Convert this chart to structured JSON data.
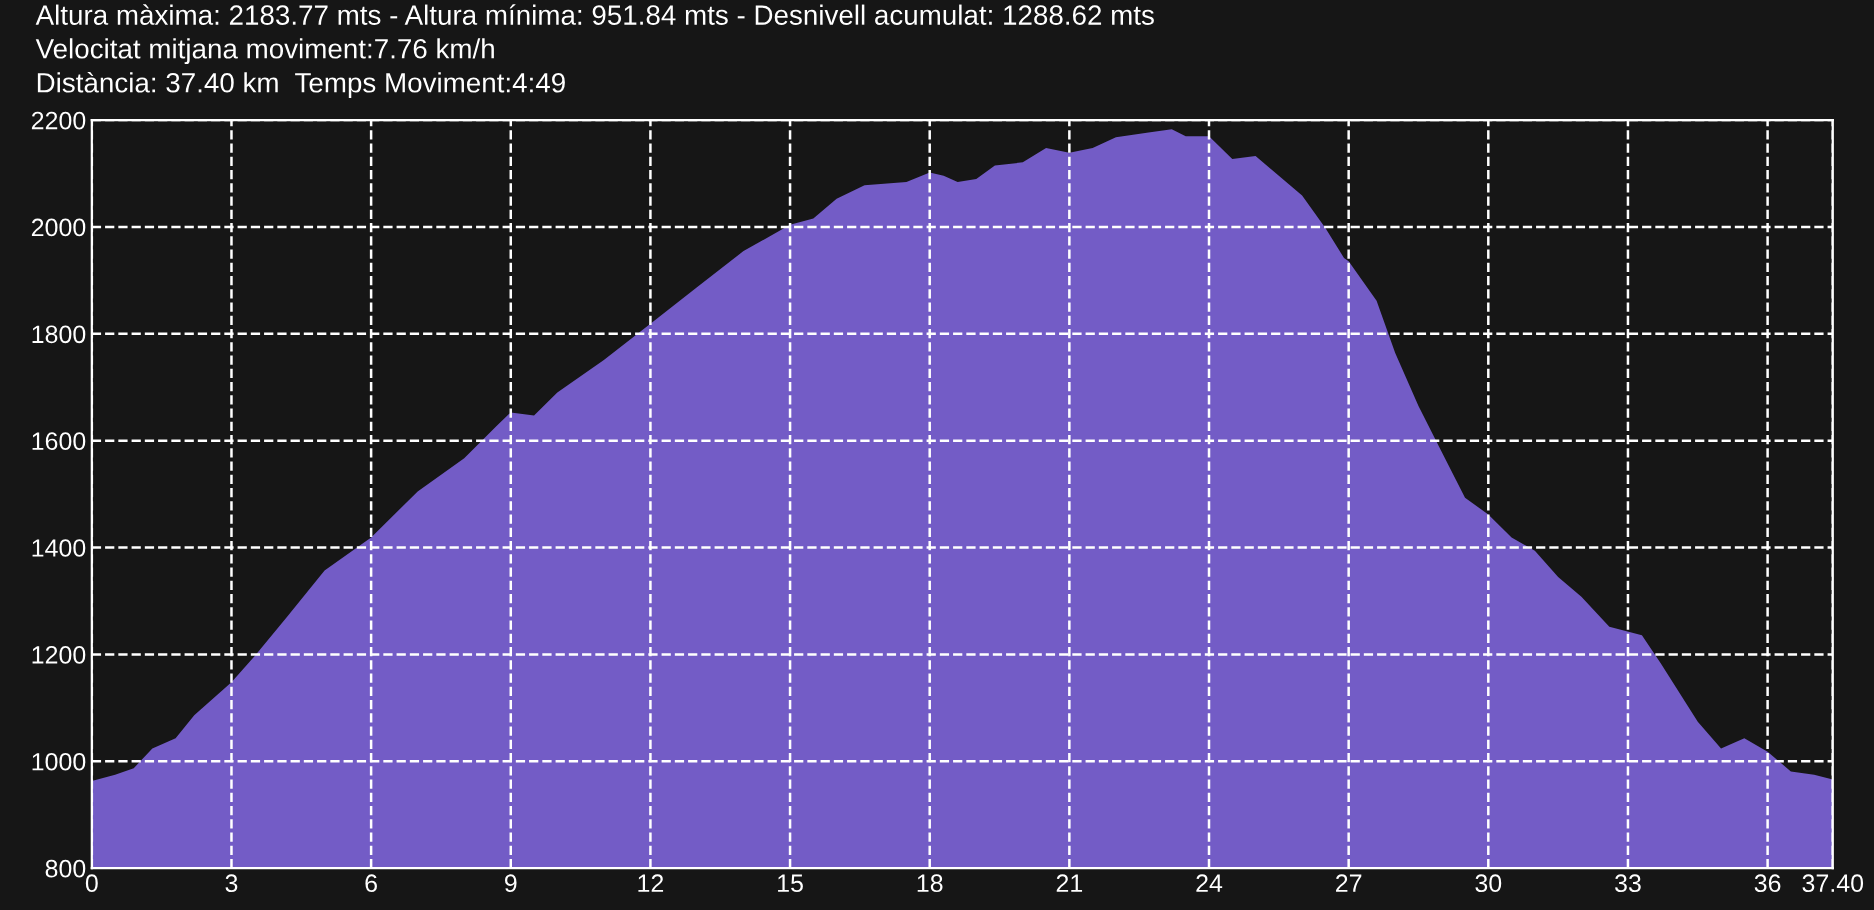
{
  "chart_data": {
    "type": "area",
    "title": "Altura màxima: 2183.77 mts - Altura mínima: 951.84 mts - Desnivell acumulat: 1288.62 mts",
    "subtitle": "Velocitat mitjana moviment:7.76 km/h",
    "annotations": [
      "Distància: 37.40 km  Temps Moviment:4:49"
    ],
    "x": [
      0,
      0.5,
      0.9,
      1.3,
      1.8,
      2.2,
      3,
      3.5,
      4.2,
      5,
      6,
      7,
      8,
      8.7,
      9,
      9.5,
      10,
      11,
      12,
      13,
      14,
      15,
      15.5,
      16,
      16.6,
      17.5,
      18,
      18.3,
      18.6,
      19,
      19.4,
      20,
      20.5,
      21,
      21.5,
      22,
      22.7,
      23.2,
      23.5,
      24,
      24.5,
      25,
      25.5,
      26,
      26.5,
      26.9,
      27,
      27.6,
      28,
      28.5,
      29,
      29.5,
      30,
      30.5,
      31,
      31.5,
      32,
      32.6,
      33.3,
      33.7,
      34.5,
      35,
      35.5,
      36,
      36.5,
      37,
      37.4
    ],
    "series": [
      {
        "color": "#735cc6",
        "values": [
          963,
          975,
          987,
          1024,
          1043,
          1086,
          1148,
          1197,
          1271,
          1357,
          1419,
          1505,
          1567,
          1628,
          1653,
          1647,
          1690,
          1751,
          1819,
          1887,
          1955,
          2004,
          2016,
          2053,
          2078,
          2084,
          2102,
          2096,
          2084,
          2090,
          2115,
          2121,
          2148,
          2139,
          2148,
          2168,
          2177,
          2183,
          2170,
          2170,
          2127,
          2133,
          2096,
          2059,
          1998,
          1942,
          1936,
          1862,
          1764,
          1665,
          1579,
          1493,
          1462,
          1419,
          1394,
          1345,
          1308,
          1252,
          1236,
          1184,
          1074,
          1024,
          1043,
          1018,
          981,
          975,
          966
        ]
      }
    ],
    "xlim": [
      0,
      37.4
    ],
    "ylim": [
      800,
      2200
    ],
    "xticks": [
      0,
      3,
      6,
      9,
      12,
      15,
      18,
      21,
      24,
      27,
      30,
      33,
      36,
      {
        "value": 37.4,
        "label": "37.40"
      }
    ],
    "yticks": [
      800,
      1000,
      1200,
      1400,
      1600,
      1800,
      2000,
      2200
    ],
    "grid": true,
    "line_style": "dashed"
  }
}
